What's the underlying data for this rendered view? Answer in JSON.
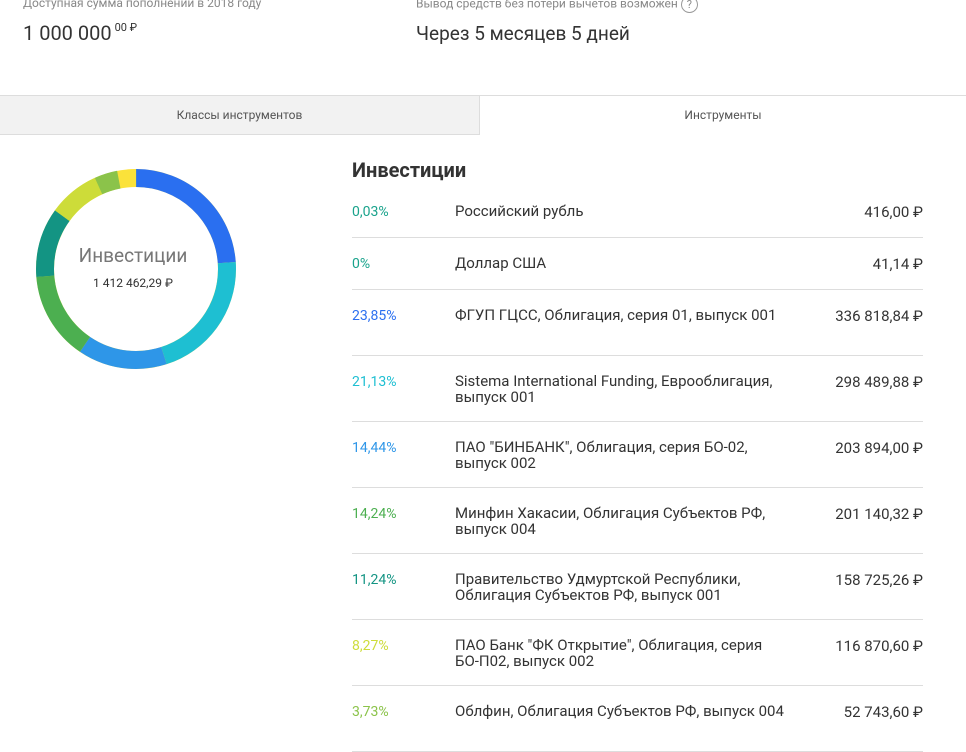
{
  "header": {
    "available_label": "Доступная сумма пополнений в 2018 году",
    "amount": "1 000 000",
    "amount_fraction": "00 ₽",
    "withdraw_label": "Вывод средств без потери вычетов возможен",
    "help": "?",
    "withdraw_value": "Через 5 месяцев 5 дней"
  },
  "tabs": [
    "Классы инструментов",
    "Инструменты"
  ],
  "donut": {
    "title": "Инвестиции",
    "total": "1 412 462,29 ₽"
  },
  "list": {
    "title": "Инвестиции",
    "rows": [
      {
        "share": 0.03,
        "share_label": "0,03%",
        "name": "Российский рубль",
        "value": "416,00 ₽",
        "color": "#1aa38c"
      },
      {
        "share": 0,
        "share_label": "0%",
        "name": "Доллар США",
        "value": "41,14 ₽",
        "color": "#1aa38c"
      },
      {
        "share": 23.85,
        "share_label": "23,85%",
        "name": "ФГУП ГЦСС, Облигация, серия 01, выпуск 001",
        "value": "336 818,84 ₽",
        "color": "#2a6ff0"
      },
      {
        "share": 21.13,
        "share_label": "21,13%",
        "name": "Sistema International Funding, Еврооблигация, выпуск 001",
        "value": "298 489,88 ₽",
        "color": "#1ebfd2"
      },
      {
        "share": 14.44,
        "share_label": "14,44%",
        "name": "ПАО \"БИНБАНК\", Облигация, серия БО-02, выпуск 002",
        "value": "203 894,00 ₽",
        "color": "#2e96e8"
      },
      {
        "share": 14.24,
        "share_label": "14,24%",
        "name": "Минфин Хакасии, Облигация Субъектов РФ, выпуск 004",
        "value": "201 140,32 ₽",
        "color": "#4caf50"
      },
      {
        "share": 11.24,
        "share_label": "11,24%",
        "name": "Правительство Удмуртской Республики, Облигация Субъектов РФ, выпуск 001",
        "value": "158 725,26 ₽",
        "color": "#139483"
      },
      {
        "share": 8.27,
        "share_label": "8,27%",
        "name": "ПАО Банк \"ФК Открытие\", Облигация, серия БО-П02, выпуск 002",
        "value": "116 870,60 ₽",
        "color": "#cddc39"
      },
      {
        "share": 3.73,
        "share_label": "3,73%",
        "name": "Облфин, Облигация Субъектов РФ, выпуск 004",
        "value": "52 743,60 ₽",
        "color": "#8bc34a"
      }
    ]
  }
}
